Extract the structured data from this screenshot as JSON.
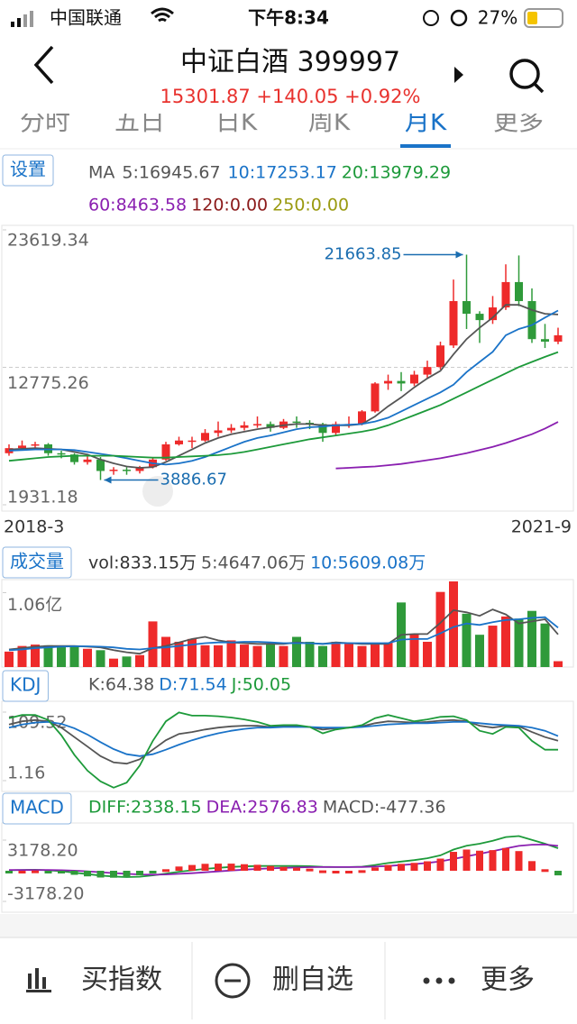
{
  "status_bar": {
    "carrier": "中国联通",
    "time": "下午8:34",
    "battery": "27%"
  },
  "header": {
    "title": "中证白酒 399997",
    "quote": "15301.87 +140.05 +0.92%"
  },
  "tabs": [
    "分时",
    "五日",
    "日K",
    "周K",
    "月K",
    "更多"
  ],
  "active_tab": "月K",
  "chart_data": [
    {
      "type": "candlestick",
      "button": "设置",
      "legend_title": "MA",
      "up_color": "#ee2a2a",
      "down_color": "#2f9a3a",
      "categories": [
        "2018-3",
        null,
        null,
        null,
        null,
        null,
        null,
        null,
        null,
        null,
        null,
        null,
        null,
        null,
        null,
        null,
        null,
        null,
        null,
        null,
        null,
        null,
        null,
        null,
        null,
        null,
        null,
        null,
        null,
        null,
        null,
        null,
        null,
        null,
        null,
        null,
        null,
        null,
        null,
        null,
        null,
        null,
        "2021-9"
      ],
      "open": [
        6000,
        6400,
        6600,
        6700,
        6000,
        5900,
        5300,
        5500,
        4600,
        4700,
        4600,
        4900,
        5500,
        6700,
        7000,
        7000,
        7600,
        7800,
        8000,
        8200,
        8300,
        8000,
        8500,
        8400,
        8300,
        7600,
        8300,
        8300,
        9300,
        11500,
        11700,
        11500,
        12200,
        12800,
        14500,
        18000,
        17000,
        16500,
        17500,
        19500,
        18000,
        15000,
        14800
      ],
      "high": [
        6700,
        7000,
        6900,
        6800,
        6200,
        6000,
        5800,
        5700,
        4900,
        4900,
        5000,
        5600,
        6900,
        7300,
        7300,
        7900,
        8500,
        8300,
        8500,
        8900,
        8500,
        8700,
        8900,
        8600,
        8400,
        8500,
        8900,
        9400,
        11600,
        12200,
        12400,
        12500,
        13300,
        14800,
        19700,
        21663.85,
        17200,
        18400,
        20900,
        21600,
        19000,
        16200,
        15900
      ],
      "low": [
        5800,
        6300,
        6400,
        5800,
        5600,
        5100,
        5100,
        3886.67,
        4300,
        4300,
        4400,
        4800,
        5400,
        6600,
        6400,
        6900,
        7300,
        7600,
        7800,
        8000,
        7700,
        7900,
        8000,
        7900,
        6900,
        7400,
        8000,
        8200,
        9200,
        11000,
        10900,
        11300,
        11900,
        12600,
        14300,
        15800,
        14700,
        16200,
        17300,
        17600,
        14700,
        14300,
        14600
      ],
      "close": [
        6400,
        6600,
        6700,
        6000,
        5900,
        5300,
        5500,
        4600,
        4700,
        4600,
        4900,
        5500,
        6700,
        7000,
        7000,
        7600,
        7800,
        8000,
        8200,
        8300,
        8000,
        8500,
        8400,
        8300,
        7600,
        8300,
        8300,
        9300,
        11500,
        11700,
        11500,
        12200,
        12800,
        14500,
        18000,
        17000,
        16500,
        17500,
        19500,
        18000,
        15000,
        14800,
        15301.87
      ],
      "max_label": "21663.85",
      "min_label": "3886.67",
      "ylim": [
        1931.18,
        23619.34
      ],
      "yticks": [
        23619.34,
        12775.26,
        1931.18
      ],
      "series": [
        {
          "name": "5:16945.67",
          "color": "#555555",
          "values": [
            6300,
            6350,
            6400,
            6350,
            6300,
            6100,
            5900,
            5500,
            5200,
            4950,
            4850,
            4900,
            5300,
            5800,
            6300,
            6800,
            7200,
            7500,
            7700,
            7900,
            8050,
            8200,
            8300,
            8300,
            8200,
            8200,
            8200,
            8300,
            8900,
            9700,
            10400,
            11200,
            11900,
            12500,
            13800,
            15000,
            15900,
            16700,
            17700,
            17700,
            17300,
            17000,
            16945.67
          ]
        },
        {
          "name": "10:17253.17",
          "color": "#1a73c8",
          "values": [
            6200,
            6250,
            6300,
            6300,
            6300,
            6250,
            6100,
            5950,
            5800,
            5600,
            5400,
            5200,
            5100,
            5200,
            5400,
            5700,
            6100,
            6500,
            6900,
            7200,
            7400,
            7650,
            7900,
            8050,
            8100,
            8200,
            8250,
            8300,
            8500,
            8800,
            9300,
            9800,
            10300,
            10800,
            11400,
            12400,
            13200,
            14000,
            15300,
            15800,
            16100,
            16700,
            17253.17
          ]
        },
        {
          "name": "20:13979.29",
          "color": "#1d9a3a",
          "values": [
            5400,
            5500,
            5600,
            5700,
            5750,
            5800,
            5800,
            5800,
            5800,
            5750,
            5700,
            5650,
            5650,
            5700,
            5750,
            5800,
            5850,
            5950,
            6100,
            6300,
            6500,
            6700,
            6900,
            7100,
            7250,
            7400,
            7550,
            7700,
            7900,
            8200,
            8600,
            9000,
            9400,
            9800,
            10300,
            10800,
            11300,
            11800,
            12300,
            12800,
            13200,
            13600,
            13979.29
          ]
        },
        {
          "name": "60:8463.58",
          "color": "#8a1fb0",
          "values": [
            null,
            null,
            null,
            null,
            null,
            null,
            null,
            null,
            null,
            null,
            null,
            null,
            null,
            null,
            null,
            null,
            null,
            null,
            null,
            null,
            null,
            null,
            null,
            null,
            null,
            4800,
            4850,
            4900,
            4950,
            5050,
            5150,
            5300,
            5450,
            5600,
            5800,
            6000,
            6250,
            6500,
            6800,
            7150,
            7500,
            7950,
            8463.58
          ]
        },
        {
          "name": "120:0.00",
          "color": "#8b1a1a"
        },
        {
          "name": "250:0.00",
          "color": "#9a9a10"
        }
      ]
    },
    {
      "type": "bar",
      "button": "成交量",
      "up_color": "#ee2a2a",
      "down_color": "#2f9a3a",
      "ylim": [
        0,
        12200
      ],
      "yticks": [
        {
          "value": 10600,
          "label": "1.06亿"
        }
      ],
      "series": [
        {
          "name": "vol:833.15万",
          "color": "#333333",
          "type": "bar",
          "values": [
            2200,
            3000,
            3200,
            3100,
            3000,
            3000,
            2600,
            2400,
            1200,
            1500,
            1700,
            6500,
            4300,
            3600,
            4000,
            3100,
            3100,
            3800,
            3200,
            3000,
            3200,
            3000,
            4300,
            3600,
            3000,
            3600,
            3300,
            3000,
            3200,
            3500,
            9200,
            4700,
            3600,
            10700,
            12200,
            7600,
            4600,
            5900,
            7200,
            6900,
            8000,
            6200,
            833.15
          ]
        },
        {
          "name": "5:4647.06万",
          "color": "#555555",
          "values": [
            2500,
            2700,
            2900,
            3000,
            3000,
            3000,
            2900,
            2800,
            2400,
            2100,
            1900,
            2700,
            3000,
            3500,
            4000,
            4300,
            3800,
            3500,
            3400,
            3300,
            3300,
            3300,
            3500,
            3400,
            3300,
            3500,
            3400,
            3300,
            3300,
            3300,
            4600,
            4700,
            4700,
            6300,
            8100,
            7800,
            7300,
            8200,
            7500,
            6200,
            6500,
            6800,
            4647.06
          ]
        },
        {
          "name": "10:5609.08万",
          "color": "#1a73c8",
          "values": [
            2400,
            2500,
            2700,
            2800,
            2900,
            2950,
            2950,
            2900,
            2800,
            2600,
            2500,
            2700,
            2800,
            3000,
            3200,
            3400,
            3500,
            3500,
            3600,
            3600,
            3500,
            3400,
            3400,
            3400,
            3300,
            3400,
            3400,
            3400,
            3400,
            3400,
            3900,
            4000,
            4000,
            4800,
            5700,
            6200,
            6000,
            6400,
            6700,
            6800,
            7000,
            7100,
            5609.08
          ]
        }
      ]
    },
    {
      "type": "line",
      "button": "KDJ",
      "ylim": [
        1.16,
        109.52
      ],
      "yticks": [
        109.52,
        1.16
      ],
      "series": [
        {
          "name": "K:64.38",
          "color": "#555555",
          "values": [
            90,
            95,
            97,
            95,
            85,
            70,
            55,
            40,
            30,
            28,
            35,
            50,
            65,
            75,
            78,
            82,
            85,
            87,
            88,
            88,
            86,
            87,
            87,
            86,
            82,
            84,
            85,
            87,
            92,
            95,
            94,
            93,
            94,
            96,
            97,
            95,
            88,
            85,
            88,
            87,
            78,
            70,
            64.38
          ]
        },
        {
          "name": "D:71.54",
          "color": "#1a73c8",
          "values": [
            85,
            90,
            93,
            94,
            91,
            84,
            74,
            62,
            51,
            43,
            40,
            43,
            50,
            58,
            65,
            71,
            76,
            80,
            83,
            85,
            85,
            86,
            86,
            86,
            85,
            85,
            85,
            86,
            88,
            90,
            91,
            92,
            92,
            93,
            94,
            94,
            92,
            90,
            89,
            88,
            85,
            80,
            71.54
          ]
        },
        {
          "name": "J:50.05",
          "color": "#1d9a3a",
          "values": [
            100,
            105,
            105,
            97,
            73,
            42,
            17,
            0,
            -10,
            -2,
            25,
            64,
            95,
            109,
            104,
            104,
            103,
            101,
            98,
            94,
            88,
            89,
            89,
            86,
            76,
            82,
            85,
            89,
            100,
            105,
            100,
            95,
            98,
            102,
            103,
            97,
            80,
            75,
            86,
            85,
            64,
            50,
            50.05
          ]
        }
      ]
    },
    {
      "type": "macd",
      "button": "MACD",
      "up_color": "#ee2a2a",
      "down_color": "#2f9a3a",
      "ylim": [
        -3178.2,
        3178.2
      ],
      "yticks": [
        {
          "value": 3178.2,
          "label": "3178.20"
        },
        {
          "value": -3178.2,
          "label": "-3178.20"
        }
      ],
      "series": [
        {
          "name": "DIFF:2338.15",
          "color": "#1d9a3a",
          "values": [
            50,
            80,
            100,
            50,
            -50,
            -200,
            -350,
            -500,
            -600,
            -650,
            -620,
            -480,
            -300,
            -100,
            50,
            200,
            300,
            400,
            450,
            500,
            500,
            500,
            500,
            480,
            400,
            380,
            380,
            420,
            600,
            800,
            950,
            1100,
            1300,
            1600,
            2200,
            2600,
            2800,
            3100,
            3500,
            3600,
            3200,
            2800,
            2338.15
          ]
        },
        {
          "name": "DEA:2576.83",
          "color": "#8a1fb0",
          "values": [
            80,
            80,
            85,
            80,
            60,
            10,
            -60,
            -150,
            -240,
            -320,
            -380,
            -400,
            -380,
            -320,
            -250,
            -160,
            -70,
            30,
            110,
            190,
            250,
            300,
            340,
            370,
            380,
            380,
            380,
            390,
            430,
            500,
            590,
            690,
            810,
            970,
            1220,
            1500,
            1760,
            2030,
            2320,
            2580,
            2700,
            2720,
            2576.83
          ]
        },
        {
          "name": "MACD:-477.36",
          "color": "#555555",
          "type": "bar",
          "values": [
            -60,
            0,
            30,
            -60,
            -220,
            -420,
            -580,
            -700,
            -720,
            -660,
            -480,
            -160,
            160,
            440,
            600,
            720,
            740,
            740,
            680,
            620,
            500,
            400,
            320,
            220,
            40,
            0,
            0,
            60,
            340,
            600,
            720,
            820,
            980,
            1260,
            1960,
            2200,
            2080,
            2140,
            2360,
            2040,
            1000,
            160,
            -477.36
          ]
        }
      ]
    }
  ],
  "toolbar": [
    "买指数",
    "删自选",
    "更多"
  ]
}
